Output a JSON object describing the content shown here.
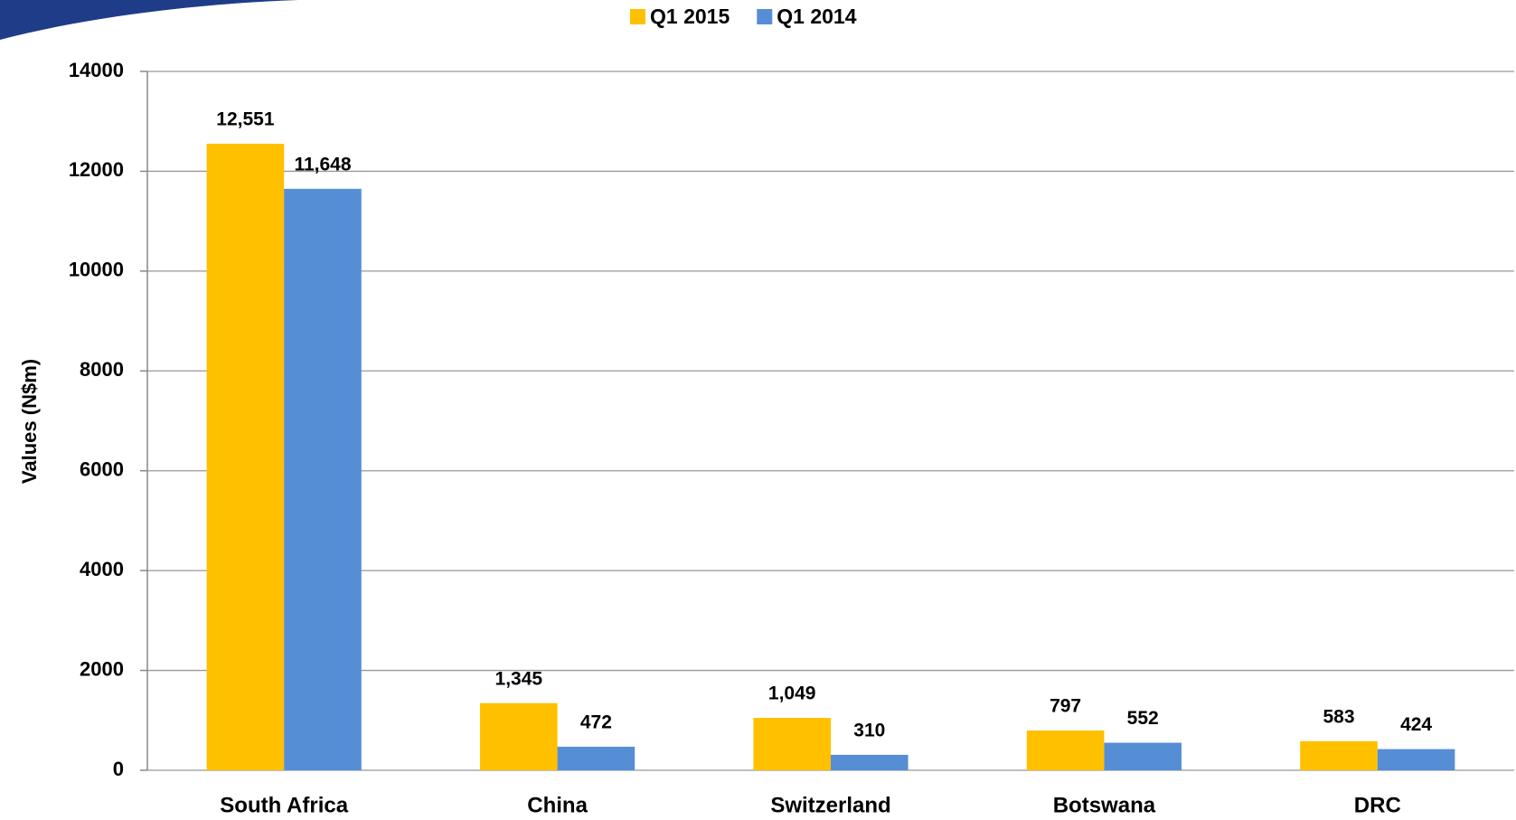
{
  "chart_data": {
    "type": "bar",
    "y_label": "Values (N$m)",
    "categories": [
      "South Africa",
      "China",
      "Switzerland",
      "Botswana",
      "DRC"
    ],
    "series": [
      {
        "name": "Q1 2015",
        "color": "#FFC000",
        "values": [
          12551,
          1345,
          1049,
          797,
          583
        ],
        "value_labels": [
          "12,551",
          "1,345",
          "1,049",
          "797",
          "583"
        ]
      },
      {
        "name": "Q1 2014",
        "color": "#558ED5",
        "values": [
          11648,
          472,
          310,
          552,
          424
        ],
        "value_labels": [
          "11,648",
          "472",
          "310",
          "552",
          "424"
        ]
      }
    ],
    "ylim": [
      0,
      14000
    ],
    "yticks": [
      0,
      2000,
      4000,
      6000,
      8000,
      10000,
      12000,
      14000
    ],
    "grid": true,
    "legend": "top"
  }
}
